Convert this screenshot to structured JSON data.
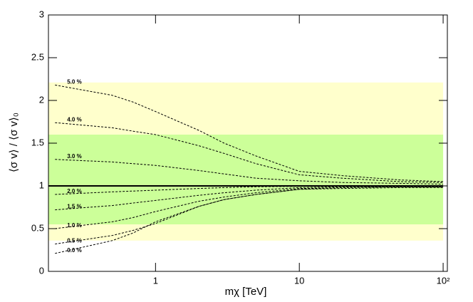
{
  "chart_data": {
    "type": "line",
    "xlabel": "mχ [TeV]",
    "ylabel": "⟨σ v⟩ / ⟨σ v⟩₀",
    "log_x": true,
    "xlim": [
      0.18,
      107
    ],
    "xticks": [
      1,
      10,
      {
        "value": 100,
        "label": "10²"
      }
    ],
    "ylim": [
      0,
      3
    ],
    "yticks": [
      0,
      0.5,
      1,
      1.5,
      2,
      2.5,
      3
    ],
    "bands": [
      {
        "color": "#ffffcc",
        "x": [
          0.18,
          100
        ],
        "y": [
          0.36,
          2.21
        ]
      },
      {
        "color": "#ccff99",
        "x": [
          0.18,
          100
        ],
        "y": [
          0.55,
          1.6
        ]
      }
    ],
    "reference": {
      "value": 1,
      "color": "#000000",
      "x": [
        0.18,
        100
      ]
    },
    "x": [
      0.2,
      0.5,
      0.7,
      1,
      2,
      3,
      5,
      10,
      20,
      50,
      100
    ],
    "series": [
      {
        "name": "5.0 %",
        "color": "#000000",
        "values": [
          2.18,
          2.06,
          1.98,
          1.87,
          1.65,
          1.5,
          1.35,
          1.17,
          1.12,
          1.07,
          1.05
        ]
      },
      {
        "name": "4.0 %",
        "color": "#000000",
        "values": [
          1.74,
          1.68,
          1.64,
          1.6,
          1.47,
          1.38,
          1.26,
          1.13,
          1.09,
          1.05,
          1.04
        ]
      },
      {
        "name": "3.0 %",
        "color": "#000000",
        "values": [
          1.31,
          1.28,
          1.26,
          1.24,
          1.18,
          1.14,
          1.09,
          1.06,
          1.04,
          1.03,
          1.02
        ]
      },
      {
        "name": "2.0 %",
        "color": "#000000",
        "values": [
          0.9,
          0.93,
          0.94,
          0.95,
          0.97,
          0.98,
          0.99,
          0.995,
          1.0,
          1.0,
          1.0
        ]
      },
      {
        "name": "1.5 %",
        "color": "#000000",
        "values": [
          0.72,
          0.77,
          0.8,
          0.83,
          0.89,
          0.92,
          0.95,
          0.98,
          0.99,
          0.99,
          0.99
        ]
      },
      {
        "name": "1.0 %",
        "color": "#000000",
        "values": [
          0.5,
          0.58,
          0.63,
          0.7,
          0.82,
          0.87,
          0.92,
          0.97,
          0.98,
          0.99,
          0.99
        ]
      },
      {
        "name": "0.5 %",
        "color": "#000000",
        "values": [
          0.32,
          0.42,
          0.48,
          0.56,
          0.76,
          0.84,
          0.9,
          0.96,
          0.98,
          0.99,
          0.99
        ]
      },
      {
        "name": "0.0 %",
        "color": "#000000",
        "values": [
          0.21,
          0.36,
          0.45,
          0.58,
          0.76,
          0.84,
          0.9,
          0.96,
          0.97,
          0.98,
          0.98
        ]
      }
    ]
  }
}
